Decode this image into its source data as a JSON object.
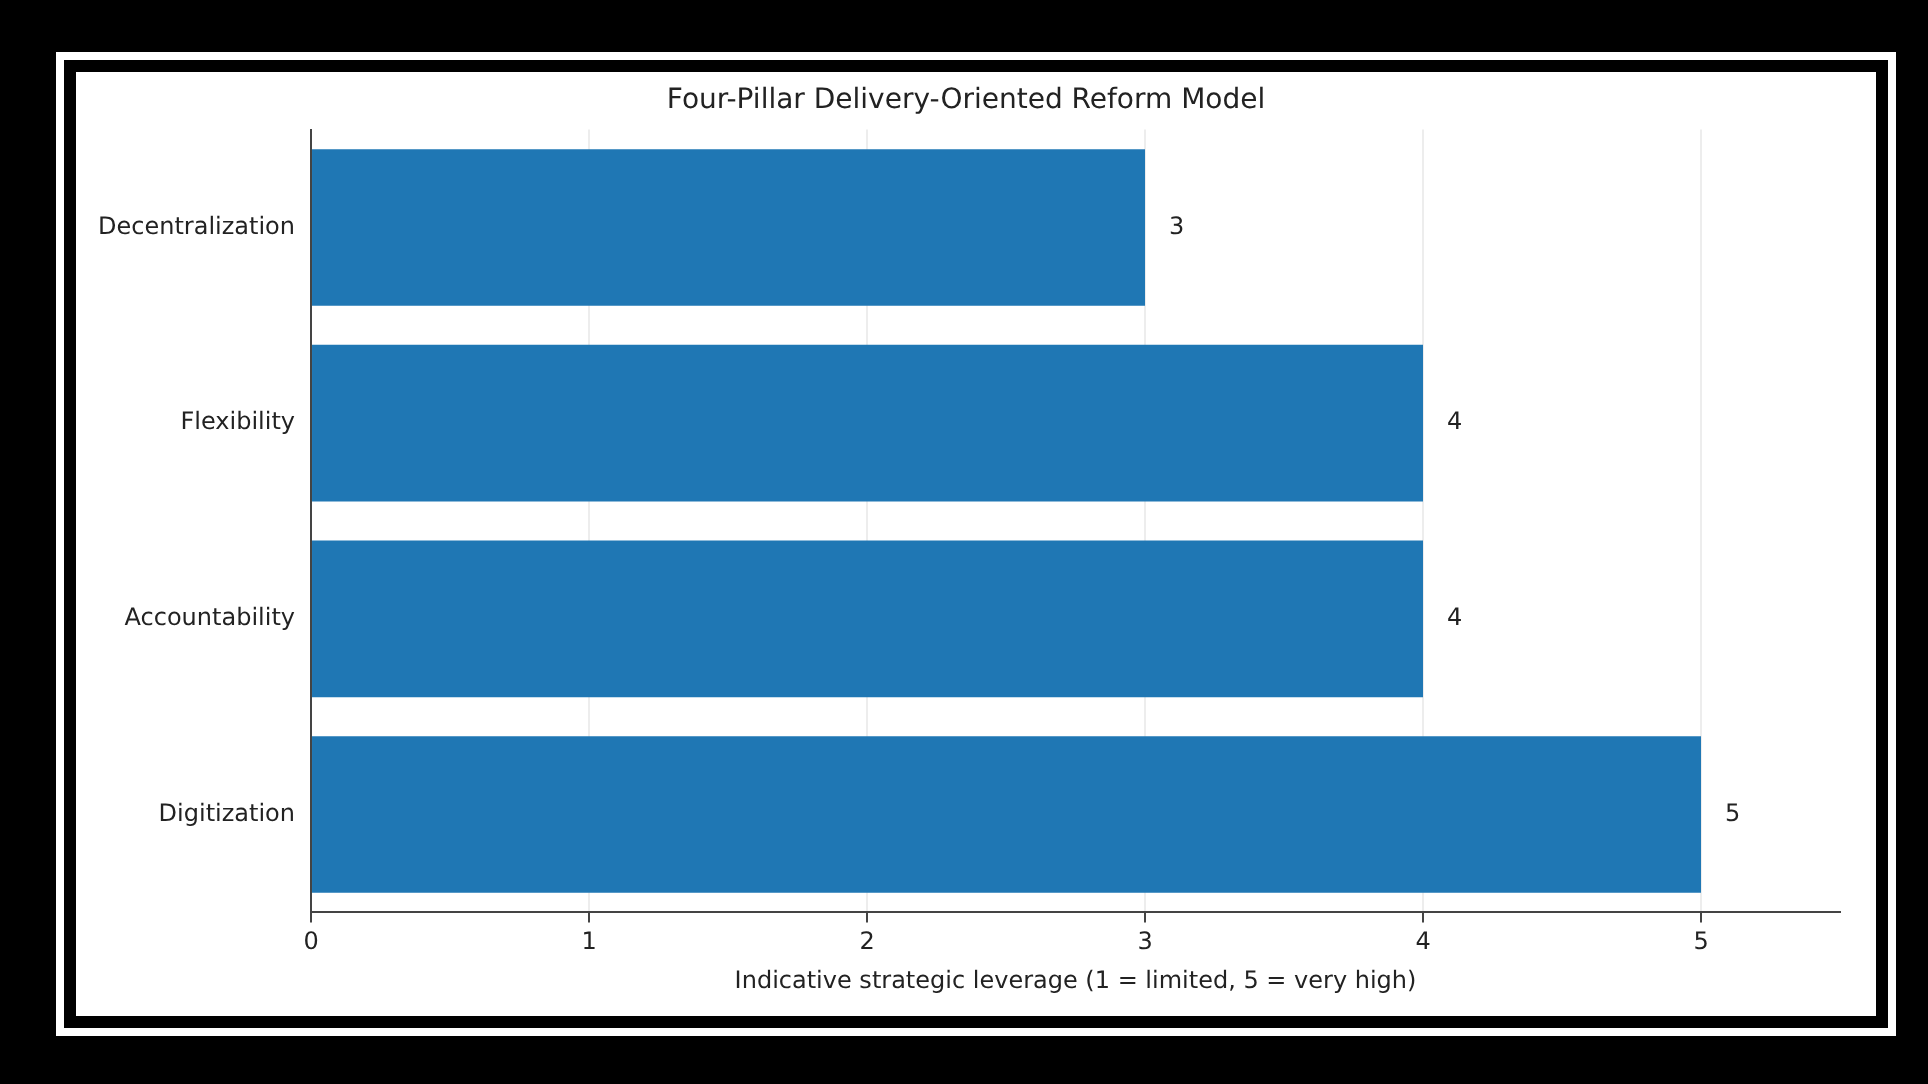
{
  "chart_data": {
    "type": "bar",
    "orientation": "horizontal",
    "title": "Four-Pillar Delivery-Oriented Reform Model",
    "xlabel": "Indicative strategic leverage (1 = limited, 5 = very high)",
    "categories": [
      "Decentralization",
      "Flexibility",
      "Accountability",
      "Digitization"
    ],
    "values": [
      3,
      4,
      4,
      5
    ],
    "color": "#1f77b4",
    "xlim": [
      0,
      5.5
    ],
    "xticks": [
      0,
      1,
      2,
      3,
      4,
      5
    ],
    "grid": "x",
    "data_labels": true
  }
}
